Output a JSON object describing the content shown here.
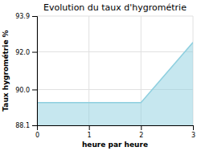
{
  "chart_data": {
    "type": "area",
    "title": "Evolution du taux d'hygrométrie",
    "xlabel": "heure par heure",
    "ylabel": "Taux hygrométrie %",
    "x": [
      0,
      2,
      3
    ],
    "values": [
      89.3,
      89.3,
      92.5
    ],
    "color": "#8ecfdf",
    "xlim": [
      0,
      3
    ],
    "ylim": [
      88.1,
      93.9
    ],
    "xticks": [
      0,
      1,
      2,
      3
    ],
    "yticks": [
      88.1,
      {
        "value": 90.0,
        "label": "90.0"
      },
      {
        "value": 92.0,
        "label": "92.0"
      },
      93.9
    ],
    "grid": true
  }
}
